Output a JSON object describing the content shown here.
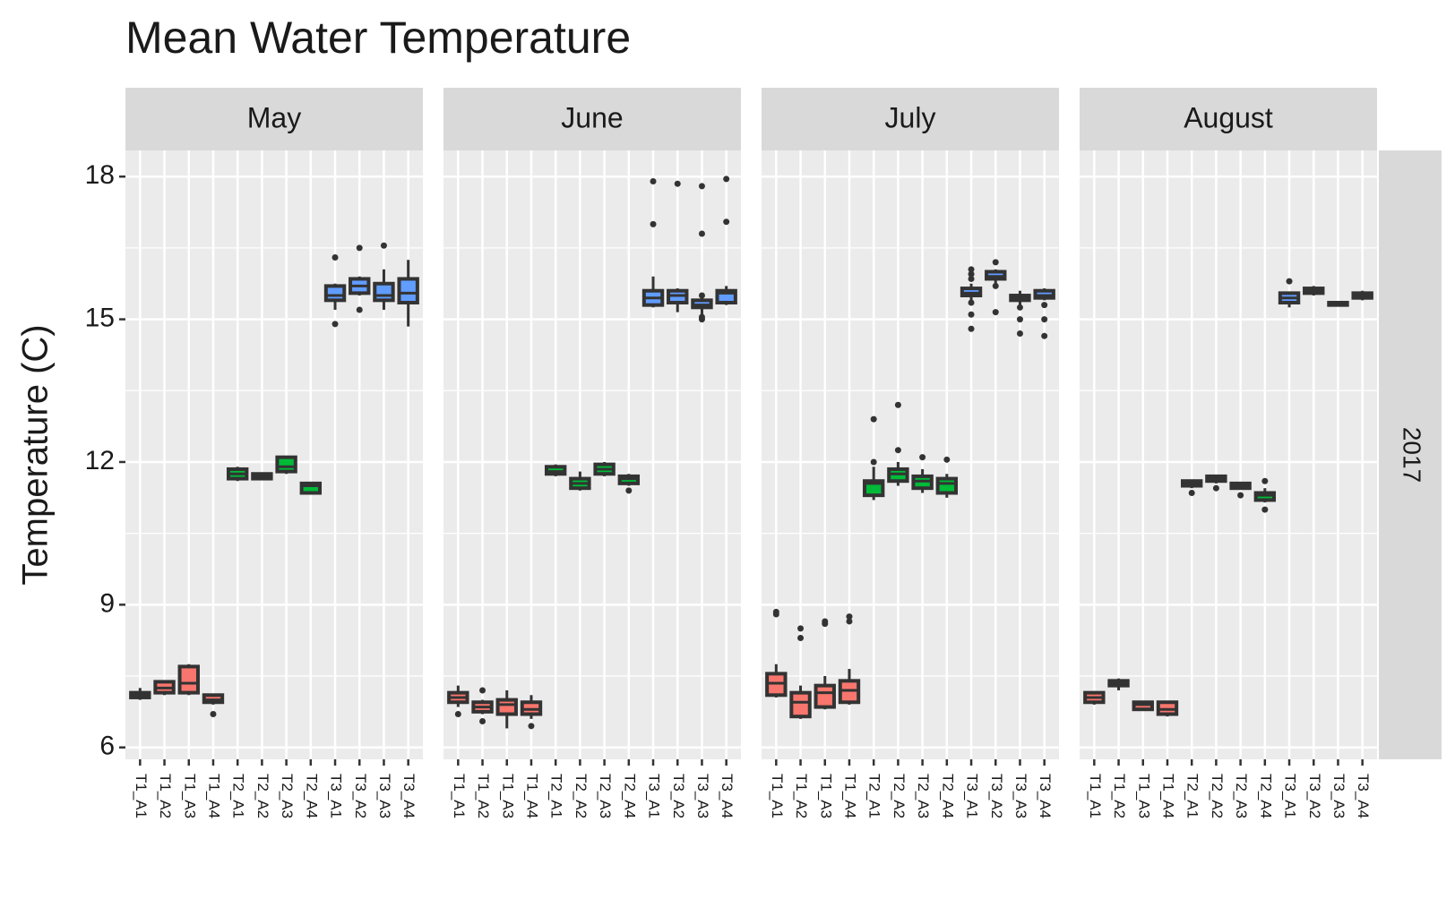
{
  "chart_data": {
    "type": "boxplot",
    "title": "Mean Water Temperature",
    "y_label": "Temperature (C)",
    "row_strip": "2017",
    "ylim": [
      5.75,
      18.55
    ],
    "yticks": [
      6,
      9,
      12,
      15,
      18
    ],
    "grid": true,
    "categories": [
      "T1_A1",
      "T1_A2",
      "T1_A3",
      "T1_A4",
      "T2_A1",
      "T2_A2",
      "T2_A3",
      "T2_A4",
      "T3_A1",
      "T3_A2",
      "T3_A3",
      "T3_A4"
    ],
    "colors": [
      "#f8766d",
      "#f8766d",
      "#f8766d",
      "#f8766d",
      "#00ba38",
      "#00ba38",
      "#00ba38",
      "#00ba38",
      "#619cff",
      "#619cff",
      "#619cff",
      "#619cff"
    ],
    "facets": [
      {
        "title": "May",
        "stats": [
          [
            7.0,
            7.05,
            7.1,
            7.15,
            7.25
          ],
          [
            7.1,
            7.15,
            7.25,
            7.38,
            7.4
          ],
          [
            7.1,
            7.15,
            7.35,
            7.7,
            7.75
          ],
          [
            6.9,
            6.95,
            7.0,
            7.1,
            7.1
          ],
          [
            11.6,
            11.65,
            11.75,
            11.85,
            11.9
          ],
          [
            11.62,
            11.65,
            11.7,
            11.75,
            11.78
          ],
          [
            11.75,
            11.8,
            11.9,
            12.1,
            12.1
          ],
          [
            11.35,
            11.35,
            11.5,
            11.55,
            11.58
          ],
          [
            15.2,
            15.4,
            15.5,
            15.7,
            15.75
          ],
          [
            15.5,
            15.55,
            15.7,
            15.85,
            15.9
          ],
          [
            15.2,
            15.4,
            15.5,
            15.75,
            16.05
          ],
          [
            14.85,
            15.35,
            15.55,
            15.85,
            16.25
          ]
        ],
        "outliers": [
          [],
          [],
          [],
          [
            6.7
          ],
          [],
          [],
          [],
          [],
          [
            16.3,
            14.9
          ],
          [
            16.5,
            15.2
          ],
          [
            16.55
          ],
          []
        ]
      },
      {
        "title": "June",
        "stats": [
          [
            6.85,
            6.95,
            7.05,
            7.15,
            7.3
          ],
          [
            6.7,
            6.75,
            6.85,
            6.95,
            7.0
          ],
          [
            6.4,
            6.7,
            6.9,
            7.0,
            7.2
          ],
          [
            6.6,
            6.7,
            6.8,
            6.95,
            7.1
          ],
          [
            11.7,
            11.75,
            11.8,
            11.9,
            11.95
          ],
          [
            11.4,
            11.45,
            11.55,
            11.65,
            11.8
          ],
          [
            11.7,
            11.75,
            11.85,
            11.95,
            12.0
          ],
          [
            11.5,
            11.55,
            11.65,
            11.7,
            11.75
          ],
          [
            15.25,
            15.3,
            15.45,
            15.6,
            15.9
          ],
          [
            15.15,
            15.35,
            15.5,
            15.6,
            15.65
          ],
          [
            15.1,
            15.25,
            15.3,
            15.4,
            15.45
          ],
          [
            15.3,
            15.35,
            15.55,
            15.6,
            15.7
          ]
        ],
        "outliers": [
          [
            6.7
          ],
          [
            6.55,
            7.2
          ],
          [],
          [
            6.45
          ],
          [],
          [],
          [],
          [
            11.4
          ],
          [
            17.0,
            17.9
          ],
          [
            17.85
          ],
          [
            15.05,
            15.0,
            16.8,
            17.8,
            15.5
          ],
          [
            17.05,
            17.95
          ]
        ]
      },
      {
        "title": "July",
        "stats": [
          [
            7.05,
            7.1,
            7.35,
            7.55,
            7.75
          ],
          [
            6.6,
            6.65,
            6.95,
            7.15,
            7.3
          ],
          [
            6.8,
            6.85,
            7.15,
            7.3,
            7.5
          ],
          [
            6.9,
            6.95,
            7.2,
            7.4,
            7.65
          ],
          [
            11.2,
            11.3,
            11.55,
            11.6,
            11.9
          ],
          [
            11.5,
            11.6,
            11.75,
            11.85,
            12.0
          ],
          [
            11.35,
            11.45,
            11.6,
            11.7,
            11.85
          ],
          [
            11.25,
            11.35,
            11.55,
            11.65,
            11.75
          ],
          [
            15.4,
            15.5,
            15.55,
            15.65,
            15.75
          ],
          [
            15.7,
            15.85,
            15.9,
            16.0,
            16.05
          ],
          [
            15.3,
            15.4,
            15.45,
            15.5,
            15.6
          ],
          [
            15.4,
            15.45,
            15.5,
            15.6,
            15.65
          ]
        ],
        "outliers": [
          [
            8.85,
            8.8
          ],
          [
            8.3,
            8.5
          ],
          [
            8.6,
            8.65
          ],
          [
            8.65,
            8.75
          ],
          [
            12.0,
            12.9
          ],
          [
            12.25,
            13.2
          ],
          [
            12.1
          ],
          [
            12.05
          ],
          [
            15.85,
            15.95,
            16.05,
            15.35,
            15.1,
            14.8
          ],
          [
            16.2,
            15.15,
            15.7
          ],
          [
            15.25,
            15.0,
            14.7
          ],
          [
            15.3,
            15.0,
            14.65
          ]
        ]
      },
      {
        "title": "August",
        "stats": [
          [
            6.9,
            6.95,
            7.05,
            7.15,
            7.15
          ],
          [
            7.2,
            7.3,
            7.35,
            7.4,
            7.45
          ],
          [
            6.78,
            6.8,
            6.9,
            6.95,
            6.97
          ],
          [
            6.65,
            6.7,
            6.8,
            6.95,
            6.95
          ],
          [
            11.45,
            11.5,
            11.55,
            11.6,
            11.62
          ],
          [
            11.55,
            11.6,
            11.65,
            11.7,
            11.72
          ],
          [
            11.42,
            11.45,
            11.5,
            11.55,
            11.57
          ],
          [
            11.15,
            11.2,
            11.3,
            11.35,
            11.45
          ],
          [
            15.25,
            15.35,
            15.45,
            15.55,
            15.55
          ],
          [
            15.5,
            15.55,
            15.6,
            15.65,
            15.7
          ],
          [
            15.27,
            15.3,
            15.3,
            15.35,
            15.37
          ],
          [
            15.4,
            15.45,
            15.5,
            15.55,
            15.6
          ]
        ],
        "outliers": [
          [],
          [],
          [],
          [],
          [
            11.35
          ],
          [
            11.45
          ],
          [
            11.3
          ],
          [
            11.0,
            11.6
          ],
          [
            15.8
          ],
          [],
          [],
          []
        ]
      }
    ]
  }
}
